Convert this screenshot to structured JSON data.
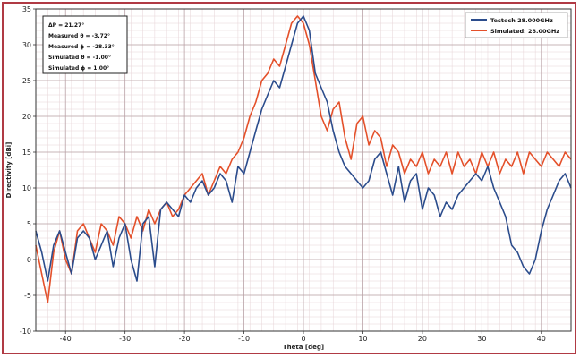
{
  "chart_data": {
    "type": "line",
    "xlabel": "Theta [deg]",
    "ylabel": "Directivity [dBi]",
    "xlim": [
      -45,
      45
    ],
    "ylim": [
      -10,
      35
    ],
    "x_ticks": [
      -40,
      -30,
      -20,
      -10,
      0,
      10,
      20,
      30,
      40
    ],
    "y_ticks": [
      -10,
      -5,
      0,
      5,
      10,
      15,
      20,
      25,
      30,
      35
    ],
    "grid": "on",
    "legend_position": "top-right",
    "info_box": [
      "ΔP = 21.27°",
      "Measured θ = -3.72°",
      "Measured ϕ = -28.33°",
      "Simulated θ = -1.00°",
      "Simulated ϕ = 1.00°"
    ],
    "series": [
      {
        "name": "Testech 28.000GHz",
        "color": "#2b4c8c",
        "x": [
          -45,
          -44,
          -43,
          -42,
          -41,
          -40,
          -39,
          -38,
          -37,
          -36,
          -35,
          -34,
          -33,
          -32,
          -31,
          -30,
          -29,
          -28,
          -27,
          -26,
          -25,
          -24,
          -23,
          -22,
          -21,
          -20,
          -19,
          -18,
          -17,
          -16,
          -15,
          -14,
          -13,
          -12,
          -11,
          -10,
          -9,
          -8,
          -7,
          -6,
          -5,
          -4,
          -3,
          -2,
          -1,
          0,
          1,
          2,
          3,
          4,
          5,
          6,
          7,
          8,
          9,
          10,
          11,
          12,
          13,
          14,
          15,
          16,
          17,
          18,
          19,
          20,
          21,
          22,
          23,
          24,
          25,
          26,
          27,
          28,
          29,
          30,
          31,
          32,
          33,
          34,
          35,
          36,
          37,
          38,
          39,
          40,
          41,
          42,
          43,
          44,
          45
        ],
        "y": [
          4,
          1,
          -3,
          2,
          4,
          1,
          -2,
          3,
          4,
          3,
          0,
          2,
          4,
          -1,
          3,
          5,
          0,
          -3,
          5,
          6,
          -1,
          7,
          8,
          7,
          6,
          9,
          8,
          10,
          11,
          9,
          10,
          12,
          11,
          8,
          13,
          12,
          15,
          18,
          21,
          23,
          25,
          24,
          27,
          30,
          33,
          34,
          32,
          26,
          24,
          22,
          18,
          15,
          13,
          12,
          11,
          10,
          11,
          14,
          15,
          12,
          9,
          13,
          8,
          11,
          12,
          7,
          10,
          9,
          6,
          8,
          7,
          9,
          10,
          11,
          12,
          11,
          13,
          10,
          8,
          6,
          2,
          1,
          -1,
          -2,
          0,
          4,
          7,
          9,
          11,
          12,
          10
        ]
      },
      {
        "name": "Simulated: 28.00GHz",
        "color": "#e4502a",
        "x": [
          -45,
          -44,
          -43,
          -42,
          -41,
          -40,
          -39,
          -38,
          -37,
          -36,
          -35,
          -34,
          -33,
          -32,
          -31,
          -30,
          -29,
          -28,
          -27,
          -26,
          -25,
          -24,
          -23,
          -22,
          -21,
          -20,
          -19,
          -18,
          -17,
          -16,
          -15,
          -14,
          -13,
          -12,
          -11,
          -10,
          -9,
          -8,
          -7,
          -6,
          -5,
          -4,
          -3,
          -2,
          -1,
          0,
          1,
          2,
          3,
          4,
          5,
          6,
          7,
          8,
          9,
          10,
          11,
          12,
          13,
          14,
          15,
          16,
          17,
          18,
          19,
          20,
          21,
          22,
          23,
          24,
          25,
          26,
          27,
          28,
          29,
          30,
          31,
          32,
          33,
          34,
          35,
          36,
          37,
          38,
          39,
          40,
          41,
          42,
          43,
          44,
          45
        ],
        "y": [
          2,
          -2,
          -6,
          1,
          4,
          0,
          -2,
          4,
          5,
          3,
          1,
          5,
          4,
          2,
          6,
          5,
          3,
          6,
          4,
          7,
          5,
          7,
          8,
          6,
          7,
          9,
          10,
          11,
          12,
          9,
          11,
          13,
          12,
          14,
          15,
          17,
          20,
          22,
          25,
          26,
          28,
          27,
          30,
          33,
          34,
          33,
          30,
          25,
          20,
          18,
          21,
          22,
          17,
          14,
          19,
          20,
          16,
          18,
          17,
          13,
          16,
          15,
          12,
          14,
          13,
          15,
          12,
          14,
          13,
          15,
          12,
          15,
          13,
          14,
          12,
          15,
          13,
          15,
          12,
          14,
          13,
          15,
          12,
          15,
          14,
          13,
          15,
          14,
          13,
          15,
          14
        ]
      }
    ]
  }
}
